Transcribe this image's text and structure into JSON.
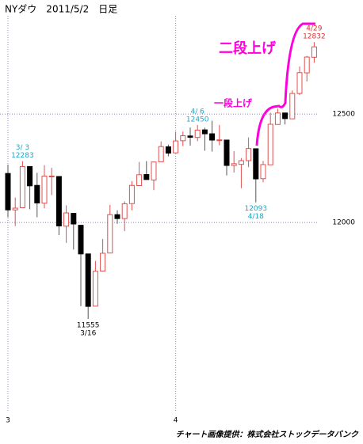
{
  "chart_data": {
    "type": "candlestick",
    "title": "NYダウ　2011/5/2　日足",
    "footer": "チャート画像提供：株式会社ストックデータバンク",
    "categories": [
      "3",
      null,
      null,
      null,
      null,
      null,
      null,
      null,
      null,
      null,
      null,
      null,
      null,
      null,
      null,
      null,
      null,
      null,
      null,
      null,
      null,
      null,
      null,
      "4",
      null,
      null,
      null,
      null,
      null,
      null,
      null,
      null,
      null,
      null,
      null,
      null,
      null,
      null,
      null,
      null,
      null,
      null,
      null
    ],
    "series": {
      "open": [
        12226,
        12058,
        12068,
        12258,
        12171,
        12089,
        12213,
        12212,
        11983,
        12042,
        11987,
        11855,
        11614,
        11776,
        11859,
        12036,
        12018,
        12087,
        12170,
        12221,
        12196,
        12280,
        12349,
        12321,
        12377,
        12399,
        12392,
        12427,
        12409,
        12381,
        12380,
        12263,
        12268,
        12285,
        12340,
        12202,
        12266,
        12452,
        12505,
        12478,
        12595,
        12690,
        12762
      ],
      "high": [
        12267,
        12115,
        12283,
        12258,
        12229,
        12264,
        12252,
        12213,
        12079,
        12042,
        11987,
        11855,
        11823,
        11924,
        12081,
        12056,
        12097,
        12191,
        12279,
        12283,
        12279,
        12374,
        12359,
        12419,
        12419,
        12438,
        12450,
        12437,
        12469,
        12450,
        12380,
        12329,
        12297,
        12392,
        12340,
        12284,
        12506,
        12525,
        12505,
        12609,
        12719,
        12768,
        12832
      ],
      "low": [
        12024,
        11983,
        12068,
        12061,
        12024,
        12065,
        12126,
        11942,
        11906,
        11875,
        11614,
        11555,
        11614,
        11776,
        11859,
        11994,
        11960,
        12056,
        12170,
        12197,
        12149,
        12280,
        12305,
        12321,
        12352,
        12354,
        12375,
        12331,
        12327,
        12356,
        12217,
        12230,
        12158,
        12255,
        12093,
        12185,
        12266,
        12452,
        12452,
        12478,
        12587,
        12650,
        12737
      ],
      "close": [
        12058,
        12066,
        12258,
        12169,
        12090,
        12214,
        12214,
        11984,
        12044,
        11993,
        11855,
        11613,
        11775,
        11858,
        12036,
        12018,
        12086,
        12171,
        12220,
        12198,
        12279,
        12350,
        12320,
        12376,
        12400,
        12393,
        12426,
        12409,
        12380,
        12381,
        12263,
        12271,
        12285,
        12341,
        12201,
        12267,
        12453,
        12505,
        12479,
        12595,
        12691,
        12763,
        12810
      ]
    },
    "up_color": "#e05050",
    "down_color": "#000000",
    "ylim": [
      11128,
      12953
    ],
    "yticks": [
      12000,
      12500
    ],
    "grid": true,
    "extremes": [
      {
        "date": "3/ 3",
        "value": 12283,
        "color": "#1aa8c8"
      },
      {
        "date": "4/ 6",
        "value": 12450,
        "color": "#1aa8c8"
      },
      {
        "date": "4/18",
        "value": 12093,
        "color": "#1aa8c8"
      },
      {
        "date": "4/29",
        "value": 12832,
        "color": "#e03030"
      },
      {
        "date": "3/16",
        "value": 11555,
        "color": "#000000"
      }
    ],
    "annotations": [
      "一段上げ",
      "二段上げ"
    ]
  }
}
